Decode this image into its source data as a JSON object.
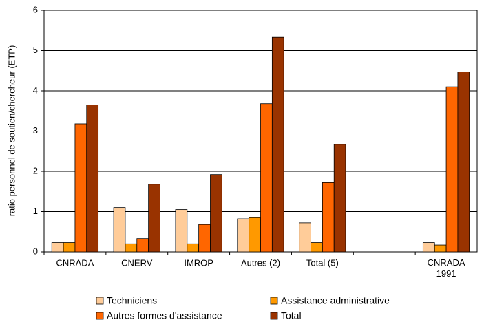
{
  "chart_data": {
    "type": "bar",
    "y_label": "ratio personnel de soutien/chercheur (ETP)",
    "categories": [
      "CNRADA",
      "CNERV",
      "IMROP",
      "Autres (2)",
      "Total (5)",
      null,
      "CNRADA 1991"
    ],
    "series": [
      {
        "name": "Techniciens",
        "color": "#ffcc99",
        "values": [
          0.23,
          1.1,
          1.05,
          0.82,
          0.72,
          null,
          0.23
        ]
      },
      {
        "name": "Assistance administrative",
        "color": "#ff9900",
        "values": [
          0.23,
          0.2,
          0.2,
          0.85,
          0.23,
          null,
          0.17
        ]
      },
      {
        "name": "Autres formes d'assistance",
        "color": "#ff6600",
        "values": [
          3.18,
          0.33,
          0.68,
          3.68,
          1.72,
          null,
          4.1
        ]
      },
      {
        "name": "Total",
        "color": "#993300",
        "values": [
          3.65,
          1.68,
          1.92,
          5.33,
          2.67,
          null,
          4.47
        ]
      }
    ],
    "ylim": [
      0,
      6
    ],
    "yticks": [
      0,
      1,
      2,
      3,
      4,
      5,
      6
    ],
    "grid": true
  }
}
